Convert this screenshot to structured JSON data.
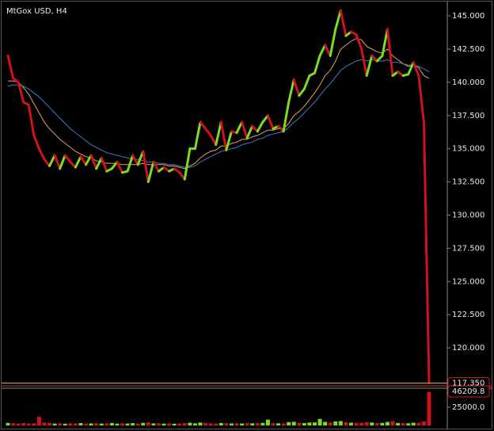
{
  "chart_data": [
    {
      "type": "line",
      "title": "MtGox USD, H4",
      "ylim": [
        117.26,
        145.9
      ],
      "yticks": [
        {
          "value": 120,
          "label": "120.000"
        },
        {
          "value": 122.5,
          "label": "122.500"
        },
        {
          "value": 125,
          "label": "125.000"
        },
        {
          "value": 127.5,
          "label": "127.500"
        },
        {
          "value": 130,
          "label": "130.000"
        },
        {
          "value": 132.5,
          "label": "132.500"
        },
        {
          "value": 135,
          "label": "135.000"
        },
        {
          "value": 137.5,
          "label": "137.500"
        },
        {
          "value": 140,
          "label": "140.000"
        },
        {
          "value": 142.5,
          "label": "142.500"
        },
        {
          "value": 145,
          "label": "145.000"
        }
      ],
      "last_price": {
        "value": 117.35,
        "label": "117.350"
      },
      "series": [
        {
          "up_color": "#7ddc1f",
          "down_color": "#d0121b",
          "values": [
            142,
            140.3,
            140,
            138.5,
            138.3,
            136,
            135,
            134.2,
            133.7,
            134.5,
            133.5,
            134.5,
            134,
            133.6,
            134.4,
            133.8,
            134.5,
            133.5,
            134.3,
            133.3,
            133.5,
            134,
            133.2,
            133.3,
            134.5,
            133.8,
            134.8,
            132.5,
            134,
            133.3,
            133.6,
            133.3,
            133.5,
            133.2,
            132.7,
            135,
            135,
            137,
            136.5,
            136,
            135.3,
            137,
            134.9,
            136.3,
            136.2,
            137,
            135.8,
            136.7,
            136.3,
            137,
            137.5,
            136.5,
            136.7,
            136.3,
            138.5,
            140.2,
            139,
            139.5,
            140.5,
            140.7,
            142,
            142.8,
            142,
            144,
            145.4,
            143.5,
            143.8,
            143.6,
            142.5,
            140.5,
            142,
            141.6,
            142,
            144,
            140.5,
            140.8,
            140.5,
            140.6,
            141.5,
            140.5,
            137,
            117.35
          ]
        },
        {
          "color": "#e8a060",
          "values": [
            140.1,
            140.1,
            140,
            139.6,
            139.1,
            138.4,
            137.7,
            137,
            136.5,
            136.1,
            135.7,
            135.4,
            135.1,
            134.8,
            134.6,
            134.4,
            134.3,
            134.1,
            134,
            133.9,
            133.9,
            133.9,
            133.8,
            133.8,
            133.8,
            133.8,
            133.9,
            133.8,
            133.8,
            133.8,
            133.8,
            133.7,
            133.7,
            133.6,
            133.5,
            133.7,
            133.9,
            134.3,
            134.6,
            134.8,
            134.9,
            135.2,
            135.2,
            135.4,
            135.5,
            135.7,
            135.7,
            135.9,
            136,
            136.2,
            136.4,
            136.4,
            136.5,
            136.5,
            136.9,
            137.5,
            137.8,
            138.2,
            138.7,
            139.2,
            139.8,
            140.5,
            140.9,
            141.6,
            142.5,
            142.8,
            143.1,
            143.3,
            143.2,
            142.7,
            142.5,
            142.3,
            142.2,
            142.5,
            142,
            141.7,
            141.4,
            141.2,
            141.3,
            141.1,
            140.5,
            140.3
          ]
        },
        {
          "color": "#3a7fc0",
          "values": [
            139.7,
            139.8,
            139.8,
            139.7,
            139.5,
            139.2,
            138.9,
            138.5,
            138.1,
            137.7,
            137.3,
            136.9,
            136.5,
            136.2,
            135.9,
            135.6,
            135.3,
            135.1,
            134.9,
            134.7,
            134.6,
            134.5,
            134.4,
            134.3,
            134.2,
            134.2,
            134.1,
            134,
            134,
            133.9,
            133.9,
            133.8,
            133.8,
            133.7,
            133.6,
            133.6,
            133.7,
            134,
            134.2,
            134.4,
            134.6,
            134.8,
            134.9,
            135,
            135.1,
            135.3,
            135.4,
            135.5,
            135.7,
            135.8,
            136,
            136.1,
            136.2,
            136.3,
            136.6,
            137,
            137.3,
            137.7,
            138.1,
            138.5,
            139,
            139.5,
            139.9,
            140.4,
            140.9,
            141.2,
            141.4,
            141.6,
            141.7,
            141.6,
            141.7,
            141.6,
            141.6,
            141.7,
            141.5,
            141.5,
            141.4,
            141.3,
            141.3,
            141.2,
            141,
            140.8
          ]
        }
      ]
    },
    {
      "type": "bar",
      "ylim": [
        0,
        49000
      ],
      "yticks": [
        {
          "value": 25000,
          "label": "25000.0"
        }
      ],
      "values": [
        3500,
        3000,
        2500,
        3200,
        2800,
        3000,
        12000,
        4000,
        3500,
        2600,
        3000,
        2400,
        3100,
        2700,
        3300,
        2500,
        2800,
        3000,
        2600,
        2900,
        3400,
        2500,
        3000,
        2700,
        3200,
        2600,
        3500,
        4200,
        2800,
        3000,
        2500,
        2900,
        2400,
        2700,
        3300,
        3800,
        2900,
        4000,
        3500,
        3000,
        2600,
        3400,
        3100,
        2800,
        3000,
        2700,
        3300,
        2900,
        3000,
        3500,
        8000,
        3200,
        3000,
        2800,
        4500,
        5000,
        3600,
        3300,
        4000,
        4200,
        9000,
        5000,
        4000,
        5500,
        6000,
        4500,
        3800,
        3500,
        3600,
        4500,
        4000,
        3200,
        3500,
        4800,
        6000,
        3500,
        3200,
        3000,
        3800,
        3500,
        5500,
        46209.8
      ]
    }
  ]
}
